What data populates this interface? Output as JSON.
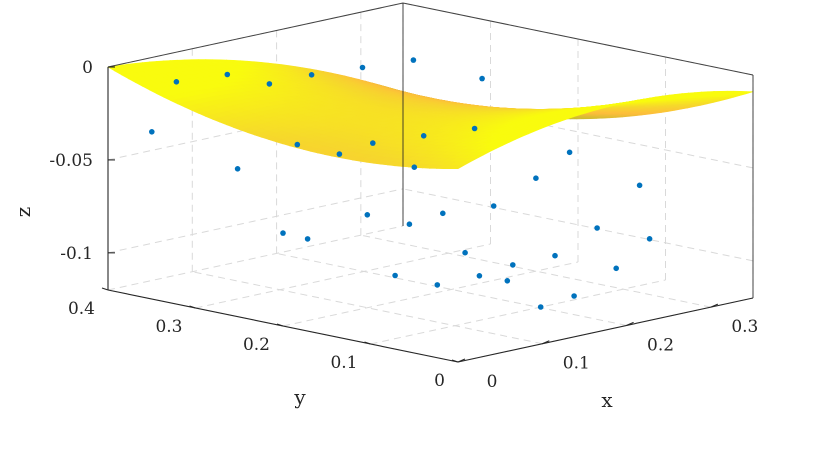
{
  "chart_data": {
    "type": "surface3d",
    "title": "",
    "xlabel": "x",
    "ylabel": "y",
    "zlabel": "z",
    "xlim": [
      0,
      0.35
    ],
    "ylim": [
      0,
      0.4
    ],
    "zlim": [
      -0.12,
      0
    ],
    "x_ticks": [
      "0",
      "0.1",
      "0.2",
      "0.3"
    ],
    "y_ticks": [
      "0",
      "0.1",
      "0.2",
      "0.3",
      "0.4"
    ],
    "z_ticks": [
      "-0.1",
      "-0.05",
      "0"
    ],
    "grid": true,
    "box": true,
    "colormap": "parula",
    "colormap_stops": [
      "#3e26a8",
      "#4743f8",
      "#2d7df4",
      "#18a5d5",
      "#1fbea0",
      "#6fc85a",
      "#c8bc2f",
      "#fdbd3c",
      "#f6d82c",
      "#f9fb0e"
    ],
    "marker_color": "#0072bd",
    "surface_model": "z = -0.4*(x - 0.5*(0.4 - y))^2 - 0.45*y*(0.4 - y)",
    "surface_domain": "0 <= x <= 0.35 and 0 <= y <= 0.4 - 0.08*x, sliced by the plane y = x/0.38",
    "scatter": [
      {
        "x": 0.0,
        "y": 0.35,
        "z": -0.03
      },
      {
        "x": 0.0,
        "y": 0.2,
        "z": -0.07
      },
      {
        "x": 0.0,
        "y": 0.05,
        "z": -0.02
      },
      {
        "x": 0.05,
        "y": 0.37,
        "z": -0.01
      },
      {
        "x": 0.05,
        "y": 0.3,
        "z": -0.05
      },
      {
        "x": 0.05,
        "y": 0.22,
        "z": -0.08
      },
      {
        "x": 0.05,
        "y": 0.12,
        "z": -0.09
      },
      {
        "x": 0.05,
        "y": 0.04,
        "z": -0.07
      },
      {
        "x": 0.1,
        "y": 0.36,
        "z": -0.01
      },
      {
        "x": 0.1,
        "y": 0.28,
        "z": -0.04
      },
      {
        "x": 0.1,
        "y": 0.2,
        "z": -0.07
      },
      {
        "x": 0.1,
        "y": 0.12,
        "z": -0.1
      },
      {
        "x": 0.1,
        "y": 0.04,
        "z": -0.09
      },
      {
        "x": 0.15,
        "y": 0.36,
        "z": -0.02
      },
      {
        "x": 0.15,
        "y": 0.28,
        "z": -0.05
      },
      {
        "x": 0.15,
        "y": 0.2,
        "z": -0.08
      },
      {
        "x": 0.15,
        "y": 0.12,
        "z": -0.1
      },
      {
        "x": 0.15,
        "y": 0.05,
        "z": -0.11
      },
      {
        "x": 0.2,
        "y": 0.36,
        "z": -0.02
      },
      {
        "x": 0.2,
        "y": 0.29,
        "z": -0.05
      },
      {
        "x": 0.2,
        "y": 0.21,
        "z": -0.08
      },
      {
        "x": 0.2,
        "y": 0.13,
        "z": -0.1
      },
      {
        "x": 0.2,
        "y": 0.06,
        "z": -0.11
      },
      {
        "x": 0.25,
        "y": 0.35,
        "z": -0.02
      },
      {
        "x": 0.25,
        "y": 0.28,
        "z": -0.05
      },
      {
        "x": 0.25,
        "y": 0.2,
        "z": -0.08
      },
      {
        "x": 0.25,
        "y": 0.13,
        "z": -0.1
      },
      {
        "x": 0.25,
        "y": 0.06,
        "z": -0.1
      },
      {
        "x": 0.3,
        "y": 0.34,
        "z": -0.02
      },
      {
        "x": 0.3,
        "y": 0.27,
        "z": -0.05
      },
      {
        "x": 0.3,
        "y": 0.2,
        "z": -0.07
      },
      {
        "x": 0.3,
        "y": 0.13,
        "z": -0.09
      },
      {
        "x": 0.3,
        "y": 0.07,
        "z": -0.09
      },
      {
        "x": 0.34,
        "y": 0.3,
        "z": -0.03
      },
      {
        "x": 0.34,
        "y": 0.2,
        "z": -0.06
      },
      {
        "x": 0.34,
        "y": 0.12,
        "z": -0.07
      }
    ]
  }
}
